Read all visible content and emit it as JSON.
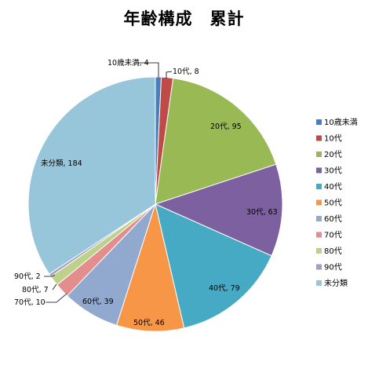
{
  "chart_data": {
    "type": "pie",
    "title": "年齢構成　累計",
    "categories": [
      "10歳未満",
      "10代",
      "20代",
      "30代",
      "40代",
      "50代",
      "60代",
      "70代",
      "80代",
      "90代",
      "未分類"
    ],
    "values": [
      4,
      8,
      95,
      63,
      79,
      46,
      39,
      10,
      7,
      2,
      184
    ],
    "data_labels": [
      "10歳未満, 4",
      "10代, 8",
      "20代, 95",
      "30代, 63",
      "40代, 79",
      "50代, 46",
      "60代, 39",
      "70代, 10",
      "80代, 7",
      "90代, 2",
      "未分類, 184"
    ],
    "colors": [
      "#4a7ebb",
      "#be4b48",
      "#98b954",
      "#7d60a0",
      "#46aac5",
      "#f79646",
      "#92a9cf",
      "#e38e8c",
      "#bcd18a",
      "#a79cc2",
      "#97c5d9"
    ],
    "legend": "right",
    "start_angle": "top",
    "direction": "clockwise"
  }
}
